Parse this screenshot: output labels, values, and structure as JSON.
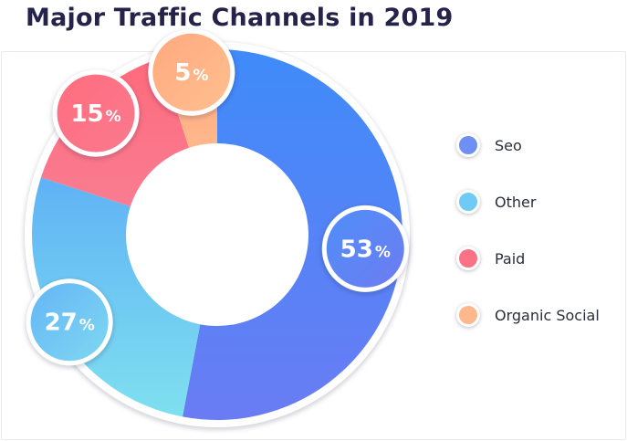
{
  "title": "Major Traffic Channels in 2019",
  "chart_data": {
    "type": "pie",
    "variant": "donut",
    "title": "Major Traffic Channels in 2019",
    "unit": "%",
    "categories": [
      "Seo",
      "Other",
      "Paid",
      "Organic Social"
    ],
    "values": [
      53,
      27,
      15,
      5
    ],
    "colors": [
      "#5b86f5",
      "#6ec9f5",
      "#fb6d82",
      "#ffb488"
    ],
    "legend_position": "right"
  },
  "legend": {
    "items": [
      {
        "label": "Seo",
        "color": "#6e90f5"
      },
      {
        "label": "Other",
        "color": "#6fcbf6"
      },
      {
        "label": "Paid",
        "color": "#fb7185"
      },
      {
        "label": "Organic Social",
        "color": "#ffb78c"
      }
    ]
  }
}
